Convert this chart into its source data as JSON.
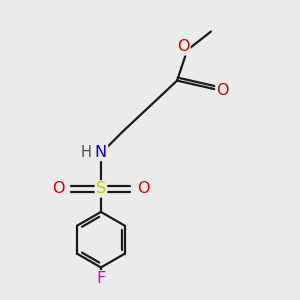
{
  "background_color": "#ebebeb",
  "bond_color": "#1a1a1a",
  "O_color": "#cc0000",
  "N_color": "#0000cc",
  "S_color": "#cccc00",
  "F_color": "#cc00cc",
  "H_color": "#4d4d4d",
  "line_width": 1.6,
  "font_size": 11.5,
  "dpi": 100,
  "figsize": [
    3.0,
    3.0
  ],
  "xlim": [
    1.5,
    8.5
  ],
  "ylim": [
    0.8,
    9.5
  ]
}
